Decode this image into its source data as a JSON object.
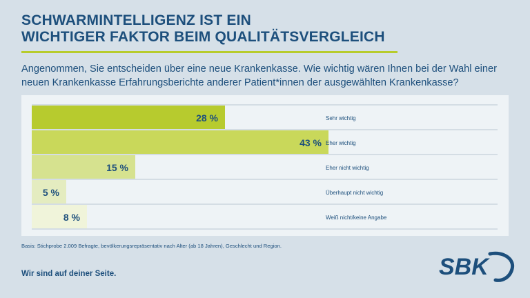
{
  "header": {
    "title_line1": "SCHWARMINTELLIGENZ IST EIN",
    "title_line2": "WICHTIGER FAKTOR BEIM QUALITÄTSVERGLEICH",
    "question": "Angenommen, Sie entscheiden über eine neue Krankenkasse. Wie wichtig wären Ihnen bei der Wahl einer neuen Krankenkasse Erfahrungsberichte anderer Patient*innen der ausgewählten Krankenkasse?"
  },
  "chart_data": {
    "type": "bar",
    "orientation": "horizontal",
    "categories": [
      "Sehr wichtig",
      "Eher wichtig",
      "Eher nicht wichtig",
      "Überhaupt nicht wichtig",
      "Weiß nicht/keine Angabe"
    ],
    "values": [
      28,
      43,
      15,
      5,
      8
    ],
    "value_labels": [
      "28 %",
      "43 %",
      "15 %",
      "5 %",
      "8 %"
    ],
    "bar_colors": [
      "#b7cb2e",
      "#c9d85a",
      "#d6e28f",
      "#e4ecc0",
      "#f0f4da"
    ],
    "xlim": [
      0,
      45
    ],
    "grid": false,
    "legend": "none"
  },
  "footer": {
    "basis": "Basis: Stichprobe 2.009 Befragte, bevölkerungsrepräsentativ nach Alter (ab 18 Jahren), Geschlecht und Region.",
    "slogan": "Wir sind auf deiner Seite."
  },
  "logo": {
    "text": "SBK"
  },
  "colors": {
    "brand_blue": "#1d4f7c",
    "accent_green": "#b7cc2c",
    "background": "#d6e0e8",
    "panel": "#eef3f6"
  }
}
